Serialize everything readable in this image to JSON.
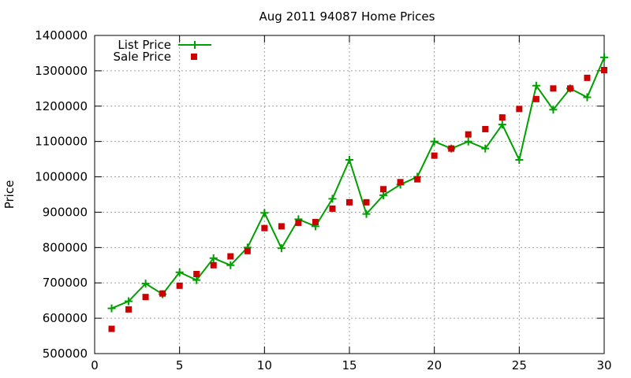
{
  "chart_data": {
    "type": "line",
    "title": "Aug 2011 94087 Home Prices",
    "xlabel": "",
    "ylabel": "Price",
    "xlim": [
      0,
      30
    ],
    "ylim": [
      500000,
      1400000
    ],
    "xticks": [
      0,
      5,
      10,
      15,
      20,
      25,
      30
    ],
    "yticks": [
      500000,
      600000,
      700000,
      800000,
      900000,
      1000000,
      1100000,
      1200000,
      1300000,
      1400000
    ],
    "grid": true,
    "legend_position": "top-left",
    "x": [
      1,
      2,
      3,
      4,
      5,
      6,
      7,
      8,
      9,
      10,
      11,
      12,
      13,
      14,
      15,
      16,
      17,
      18,
      19,
      20,
      21,
      22,
      23,
      24,
      25,
      26,
      27,
      28,
      29,
      30
    ],
    "series": [
      {
        "name": "List Price",
        "style": "line-with-plus-markers",
        "color": "#00a000",
        "values": [
          628000,
          648000,
          698000,
          668000,
          730000,
          708000,
          770000,
          750000,
          800000,
          898000,
          798000,
          880000,
          860000,
          938000,
          1048000,
          895000,
          948000,
          978000,
          1000000,
          1100000,
          1080000,
          1100000,
          1080000,
          1148000,
          1048000,
          1258000,
          1190000,
          1250000,
          1225000,
          1338000
        ]
      },
      {
        "name": "Sale Price",
        "style": "square-markers",
        "color": "#cc0000",
        "values": [
          570000,
          625000,
          660000,
          670000,
          692000,
          725000,
          750000,
          775000,
          790000,
          855000,
          860000,
          870000,
          872000,
          910000,
          928000,
          928000,
          965000,
          985000,
          993000,
          1060000,
          1080000,
          1120000,
          1135000,
          1168000,
          1192000,
          1220000,
          1250000,
          1250000,
          1280000,
          1302000
        ]
      }
    ]
  }
}
